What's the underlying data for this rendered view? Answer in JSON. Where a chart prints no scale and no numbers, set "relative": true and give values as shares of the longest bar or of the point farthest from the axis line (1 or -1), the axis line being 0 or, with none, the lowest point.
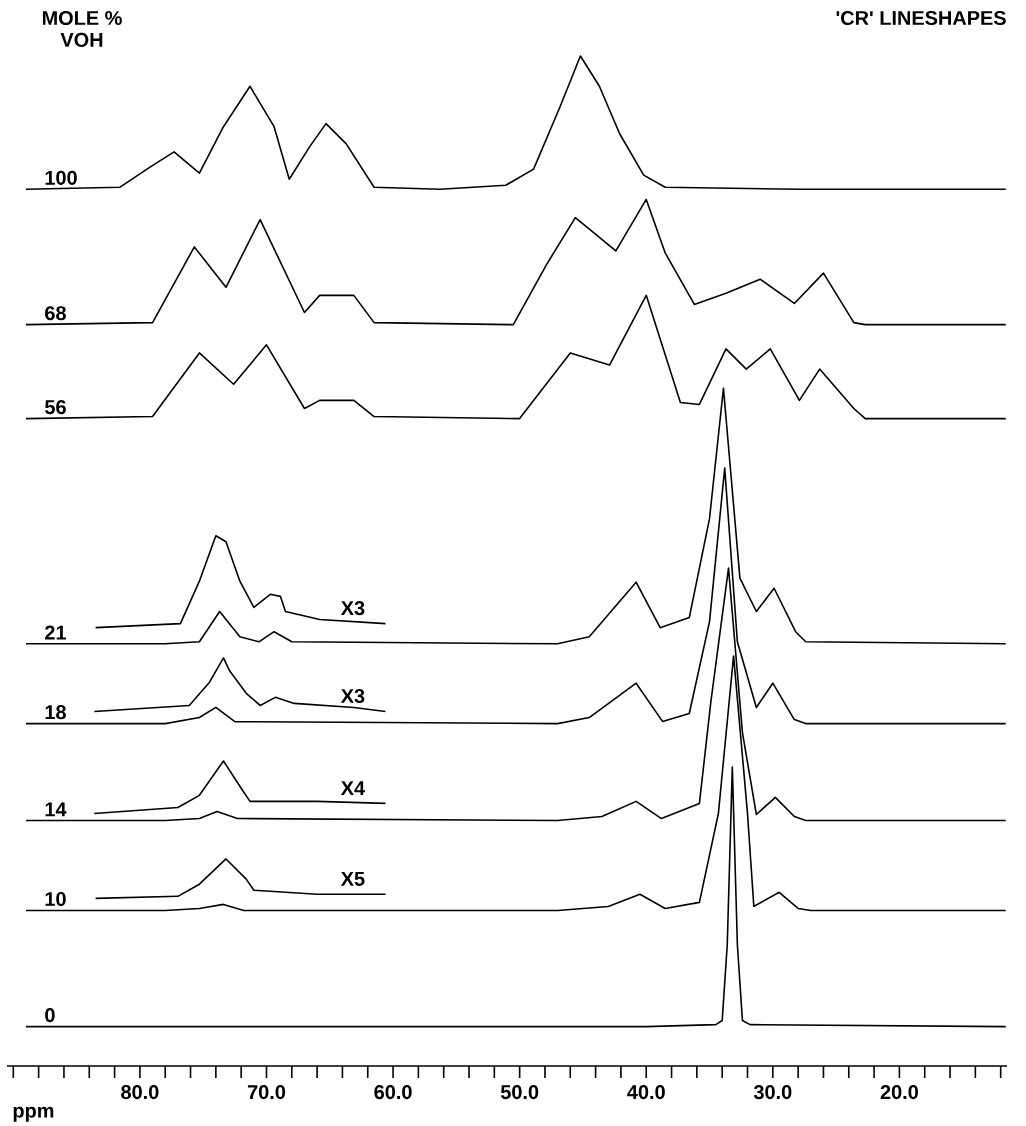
{
  "chart_data": {
    "type": "line",
    "title": "'CR'  LINESHAPES",
    "legend_title": "MOLE % VOH",
    "xlabel": "ppm",
    "relative": true,
    "xlim": [
      90.5,
      11.5
    ],
    "xticks": [
      {
        "value": 90,
        "label": null
      },
      {
        "value": 88,
        "label": null
      },
      {
        "value": 86,
        "label": null
      },
      {
        "value": 84,
        "label": null
      },
      {
        "value": 82,
        "label": null
      },
      {
        "value": 80,
        "label": "80.0"
      },
      {
        "value": 78,
        "label": null
      },
      {
        "value": 76,
        "label": null
      },
      {
        "value": 74,
        "label": null
      },
      {
        "value": 72,
        "label": null
      },
      {
        "value": 70,
        "label": "70.0"
      },
      {
        "value": 68,
        "label": null
      },
      {
        "value": 66,
        "label": null
      },
      {
        "value": 64,
        "label": null
      },
      {
        "value": 62,
        "label": null
      },
      {
        "value": 60,
        "label": "60.0"
      },
      {
        "value": 58,
        "label": null
      },
      {
        "value": 56,
        "label": null
      },
      {
        "value": 54,
        "label": null
      },
      {
        "value": 52,
        "label": null
      },
      {
        "value": 50,
        "label": "50.0"
      },
      {
        "value": 48,
        "label": null
      },
      {
        "value": 46,
        "label": null
      },
      {
        "value": 44,
        "label": null
      },
      {
        "value": 42,
        "label": null
      },
      {
        "value": 40,
        "label": "40.0"
      },
      {
        "value": 38,
        "label": null
      },
      {
        "value": 36,
        "label": null
      },
      {
        "value": 34,
        "label": null
      },
      {
        "value": 32,
        "label": null
      },
      {
        "value": 30,
        "label": "30.0"
      },
      {
        "value": 28,
        "label": null
      },
      {
        "value": 26,
        "label": null
      },
      {
        "value": 24,
        "label": null
      },
      {
        "value": 22,
        "label": null
      },
      {
        "value": 20,
        "label": "20.0"
      },
      {
        "value": 18,
        "label": null
      },
      {
        "value": 16,
        "label": null
      },
      {
        "value": 14,
        "label": null
      },
      {
        "value": 12,
        "label": null
      }
    ],
    "series": [
      {
        "name": "100",
        "color": "#000000",
        "x": [
          89.0,
          81.6,
          79.2,
          77.3,
          75.3,
          73.4,
          71.3,
          69.4,
          68.2,
          66.6,
          65.3,
          63.7,
          61.5,
          56.3,
          51.1,
          48.9,
          46.8,
          45.2,
          43.7,
          42.1,
          40.2,
          38.5,
          27.9,
          11.6
        ],
        "values": [
          0.868,
          0.87,
          0.89,
          0.905,
          0.884,
          0.93,
          0.97,
          0.93,
          0.878,
          0.91,
          0.933,
          0.913,
          0.87,
          0.868,
          0.872,
          0.888,
          0.95,
          1.0,
          0.97,
          0.923,
          0.882,
          0.87,
          0.868,
          0.868
        ]
      },
      {
        "name": "68",
        "color": "#000000",
        "x": [
          89.0,
          79.0,
          75.7,
          73.2,
          70.5,
          67.0,
          65.8,
          63.1,
          61.5,
          50.5,
          47.9,
          45.6,
          42.4,
          40.0,
          38.5,
          36.2,
          33.7,
          31.0,
          28.3,
          26.0,
          23.6,
          22.7,
          11.6
        ],
        "values": [
          0.734,
          0.736,
          0.811,
          0.771,
          0.838,
          0.746,
          0.763,
          0.763,
          0.736,
          0.734,
          0.793,
          0.84,
          0.807,
          0.858,
          0.805,
          0.754,
          0.765,
          0.779,
          0.755,
          0.785,
          0.736,
          0.734,
          0.734
        ]
      },
      {
        "name": "56",
        "color": "#000000",
        "x": [
          89.0,
          79.0,
          75.3,
          72.6,
          70.0,
          67.0,
          65.8,
          63.1,
          61.5,
          50.0,
          46.0,
          42.9,
          40.0,
          37.3,
          35.8,
          33.7,
          32.1,
          30.2,
          27.9,
          26.3,
          23.6,
          22.7,
          11.6
        ],
        "values": [
          0.641,
          0.643,
          0.706,
          0.675,
          0.714,
          0.651,
          0.659,
          0.659,
          0.643,
          0.641,
          0.706,
          0.694,
          0.763,
          0.657,
          0.655,
          0.71,
          0.69,
          0.71,
          0.659,
          0.69,
          0.651,
          0.641,
          0.641
        ]
      },
      {
        "name": "21",
        "color": "#000000",
        "x": [
          89.0,
          78.0,
          75.3,
          73.7,
          72.1,
          70.6,
          69.4,
          68.0,
          47.0,
          44.5,
          40.8,
          38.9,
          36.6,
          35.0,
          33.9,
          32.6,
          31.3,
          29.9,
          28.2,
          27.4,
          11.6
        ],
        "values": [
          0.418,
          0.418,
          0.42,
          0.45,
          0.425,
          0.42,
          0.43,
          0.42,
          0.418,
          0.425,
          0.479,
          0.434,
          0.444,
          0.542,
          0.671,
          0.483,
          0.45,
          0.473,
          0.43,
          0.42,
          0.418
        ]
      },
      {
        "color": "#000000",
        "x": [
          83.5,
          76.8,
          75.3,
          74.0,
          73.2,
          72.1,
          71.0,
          69.7,
          68.9,
          68.5,
          65.8,
          60.6
        ],
        "values": [
          0.434,
          0.438,
          0.48,
          0.525,
          0.519,
          0.48,
          0.454,
          0.467,
          0.465,
          0.45,
          0.442,
          0.438
        ]
      },
      {
        "name": "18",
        "color": "#000000",
        "x": [
          89.0,
          78.0,
          75.3,
          74.0,
          72.5,
          47.0,
          44.5,
          40.8,
          38.7,
          36.6,
          35.0,
          33.8,
          32.8,
          31.3,
          30.0,
          28.3,
          27.4,
          11.6
        ],
        "values": [
          0.339,
          0.339,
          0.345,
          0.355,
          0.341,
          0.339,
          0.345,
          0.379,
          0.341,
          0.349,
          0.44,
          0.592,
          0.42,
          0.355,
          0.379,
          0.343,
          0.339,
          0.339
        ]
      },
      {
        "color": "#000000",
        "x": [
          83.6,
          76.1,
          74.5,
          73.4,
          72.9,
          71.6,
          70.5,
          69.3,
          67.8,
          63.1,
          60.6
        ],
        "values": [
          0.351,
          0.357,
          0.38,
          0.404,
          0.391,
          0.369,
          0.357,
          0.365,
          0.359,
          0.355,
          0.351
        ]
      },
      {
        "name": "14",
        "color": "#000000",
        "x": [
          89.0,
          78.0,
          75.3,
          73.9,
          72.3,
          47.0,
          43.5,
          40.8,
          38.8,
          35.8,
          34.9,
          33.5,
          32.4,
          31.3,
          29.8,
          28.3,
          27.4,
          11.6
        ],
        "values": [
          0.243,
          0.243,
          0.245,
          0.252,
          0.245,
          0.243,
          0.247,
          0.262,
          0.245,
          0.26,
          0.36,
          0.493,
          0.33,
          0.249,
          0.266,
          0.247,
          0.243,
          0.243
        ]
      },
      {
        "color": "#000000",
        "x": [
          83.6,
          77.0,
          75.3,
          73.4,
          72.0,
          71.3,
          66.0,
          60.6
        ],
        "values": [
          0.25,
          0.256,
          0.268,
          0.302,
          0.275,
          0.262,
          0.262,
          0.26
        ]
      },
      {
        "name": "10",
        "color": "#000000",
        "x": [
          89.0,
          78.0,
          75.3,
          73.4,
          71.8,
          47.0,
          43.0,
          40.5,
          38.5,
          35.8,
          34.3,
          33.1,
          32.0,
          31.5,
          29.5,
          28.0,
          27.0,
          11.6
        ],
        "values": [
          0.154,
          0.154,
          0.156,
          0.16,
          0.154,
          0.154,
          0.158,
          0.17,
          0.156,
          0.162,
          0.25,
          0.406,
          0.25,
          0.158,
          0.172,
          0.156,
          0.154,
          0.154
        ]
      },
      {
        "color": "#000000",
        "x": [
          83.5,
          77.0,
          75.3,
          73.2,
          71.6,
          71.0,
          66.0,
          60.6
        ],
        "values": [
          0.166,
          0.168,
          0.18,
          0.205,
          0.185,
          0.174,
          0.17,
          0.17
        ]
      },
      {
        "name": "0",
        "color": "#000000",
        "x": [
          89.0,
          40.0,
          34.5,
          34.0,
          33.6,
          33.2,
          32.8,
          32.4,
          31.8,
          11.6
        ],
        "values": [
          0.039,
          0.039,
          0.041,
          0.045,
          0.12,
          0.296,
          0.12,
          0.045,
          0.041,
          0.039
        ]
      }
    ],
    "annotations": [
      "X3",
      "X3",
      "X4",
      "X5"
    ]
  }
}
